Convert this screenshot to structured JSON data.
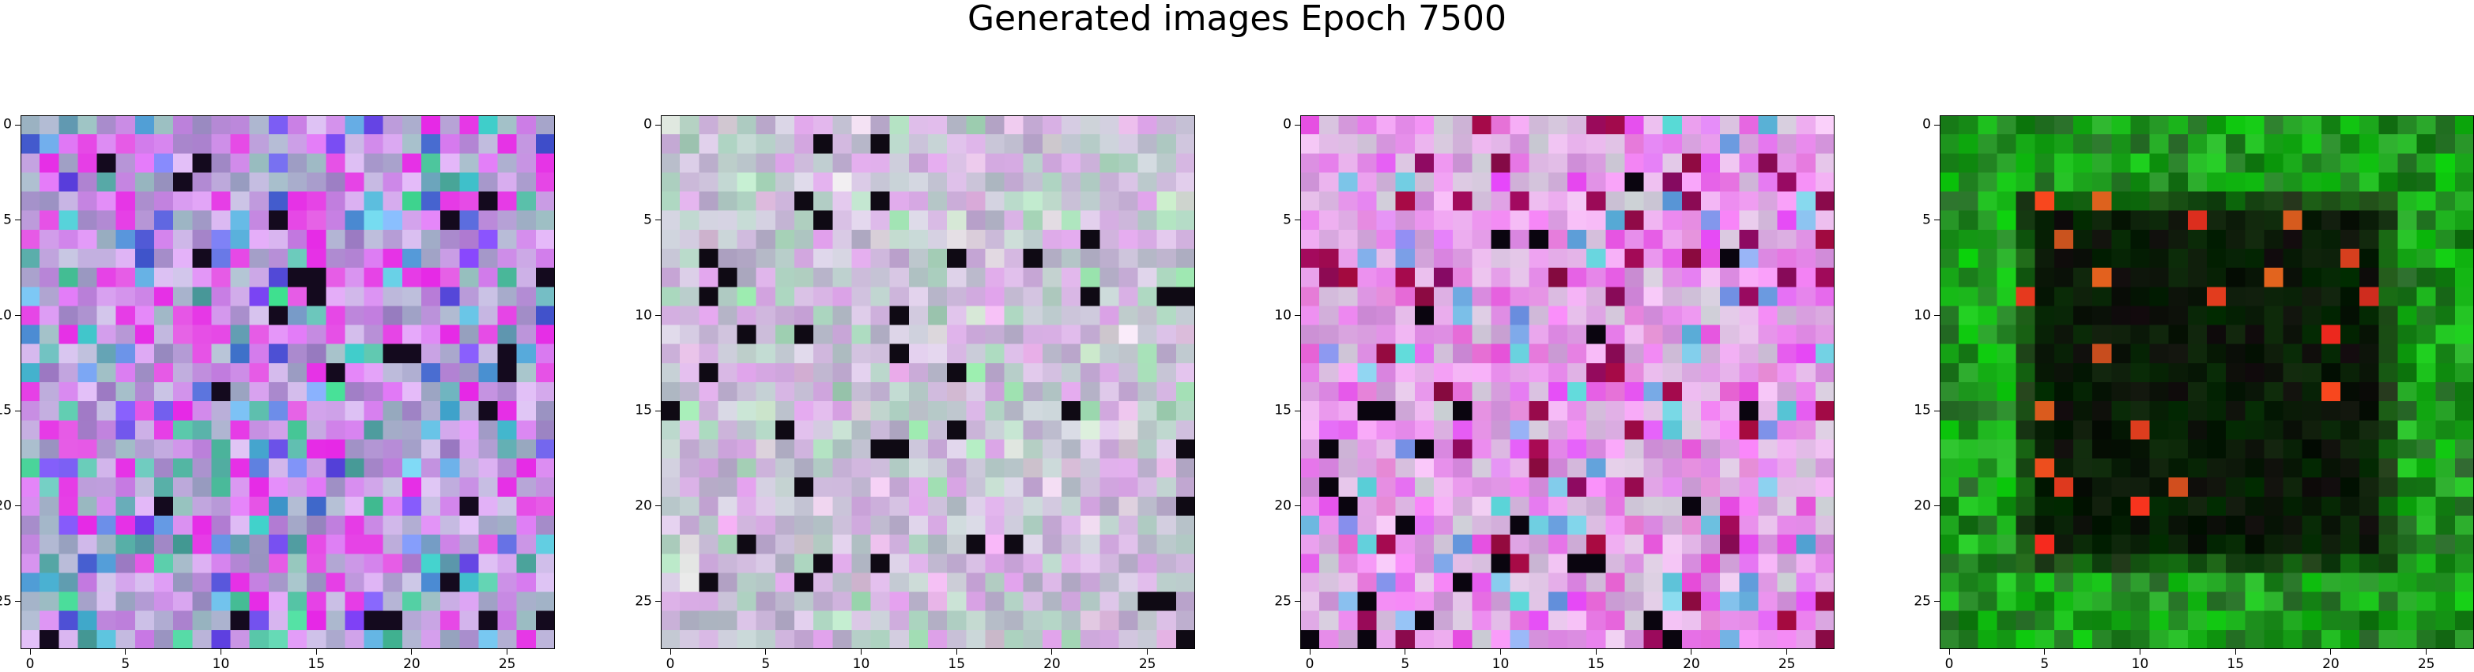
{
  "figure": {
    "title": "Generated images Epoch 7500"
  },
  "panels": [
    {
      "id": "panel-1",
      "palette": "purple-blue-noise"
    },
    {
      "id": "panel-2",
      "palette": "pastel-grey-noise"
    },
    {
      "id": "panel-3",
      "palette": "pink-magenta-noise"
    },
    {
      "id": "panel-4",
      "palette": "green-border-dark-center"
    }
  ],
  "axes": {
    "ticks": [
      0,
      5,
      10,
      15,
      20,
      25
    ],
    "tick_labels": [
      "0",
      "5",
      "10",
      "15",
      "20",
      "25"
    ],
    "grid_size": 28
  }
}
